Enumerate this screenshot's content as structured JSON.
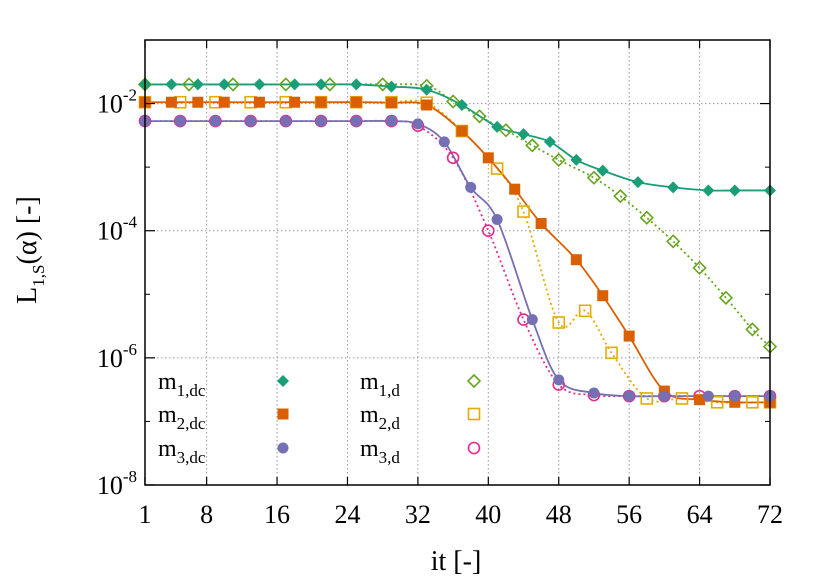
{
  "chart_data": {
    "type": "line",
    "xlabel": "it [-]",
    "ylabel": {
      "base": "L",
      "sub": "1,S",
      "rest": "(α) [-]"
    },
    "x_ticks": [
      1,
      8,
      16,
      24,
      32,
      40,
      48,
      56,
      64,
      72
    ],
    "x_tick_labels": [
      "1",
      "8",
      "16",
      "24",
      "32",
      "40",
      "48",
      "56",
      "64",
      "72"
    ],
    "xlim": [
      1,
      72
    ],
    "y_scale": "log",
    "ylim": [
      1e-08,
      0.1
    ],
    "y_ticks": [
      {
        "value": 0.01,
        "base": "10",
        "exp": "-2"
      },
      {
        "value": 0.0001,
        "base": "10",
        "exp": "-4"
      },
      {
        "value": 1e-06,
        "base": "10",
        "exp": "-6"
      },
      {
        "value": 1e-08,
        "base": "10",
        "exp": "-8"
      }
    ],
    "grid": true,
    "legend_position": "bottom-left",
    "series": [
      {
        "id": "m1dc",
        "name": "m",
        "sub": "1,dc",
        "color": "#1a9e77",
        "marker": "diamond-filled",
        "line": "solid",
        "points": [
          [
            1,
            0.02
          ],
          [
            4,
            0.02
          ],
          [
            7,
            0.02
          ],
          [
            10,
            0.02
          ],
          [
            14,
            0.02
          ],
          [
            18,
            0.02
          ],
          [
            21,
            0.02
          ],
          [
            25,
            0.02
          ],
          [
            29,
            0.0185
          ],
          [
            33,
            0.0165
          ],
          [
            37,
            0.0095
          ],
          [
            41,
            0.0043
          ],
          [
            44,
            0.0033
          ],
          [
            47,
            0.0025
          ],
          [
            50,
            0.0013
          ],
          [
            53,
            0.00088
          ],
          [
            57,
            0.00058
          ],
          [
            61,
            0.00048
          ],
          [
            65,
            0.00043
          ],
          [
            68,
            0.00043
          ],
          [
            72,
            0.00043
          ]
        ]
      },
      {
        "id": "m2dc",
        "name": "m",
        "sub": "2,dc",
        "color": "#d95f02",
        "marker": "square-filled",
        "line": "solid",
        "points": [
          [
            1,
            0.0105
          ],
          [
            4,
            0.0105
          ],
          [
            7,
            0.0105
          ],
          [
            10,
            0.0105
          ],
          [
            14,
            0.0105
          ],
          [
            18,
            0.0105
          ],
          [
            21,
            0.0105
          ],
          [
            25,
            0.0105
          ],
          [
            29,
            0.0103
          ],
          [
            33,
            0.0095
          ],
          [
            37,
            0.0037
          ],
          [
            40,
            0.0014
          ],
          [
            43,
            0.00045
          ],
          [
            46,
            0.00013
          ],
          [
            50,
            3.5e-05
          ],
          [
            53,
            9.5e-06
          ],
          [
            56,
            2.2e-06
          ],
          [
            60,
            3e-07
          ],
          [
            64,
            2.2e-07
          ],
          [
            68,
            2e-07
          ],
          [
            72,
            2e-07
          ]
        ]
      },
      {
        "id": "m3dc",
        "name": "m",
        "sub": "3,dc",
        "color": "#7570b3",
        "marker": "circle-filled",
        "line": "solid",
        "points": [
          [
            1,
            0.0053
          ],
          [
            5,
            0.0053
          ],
          [
            9,
            0.0053
          ],
          [
            13,
            0.0053
          ],
          [
            17,
            0.0053
          ],
          [
            21,
            0.0053
          ],
          [
            25,
            0.0053
          ],
          [
            29,
            0.0053
          ],
          [
            32,
            0.0048
          ],
          [
            35,
            0.0025
          ],
          [
            38,
            0.00048
          ],
          [
            41,
            0.00015
          ],
          [
            45,
            4e-06
          ],
          [
            48,
            4.5e-07
          ],
          [
            52,
            2.8e-07
          ],
          [
            56,
            2.5e-07
          ],
          [
            60,
            2.5e-07
          ],
          [
            65,
            2.5e-07
          ],
          [
            68,
            2.5e-07
          ],
          [
            72,
            2.5e-07
          ]
        ]
      },
      {
        "id": "m1d",
        "name": "m",
        "sub": "1,d",
        "color": "#66a61e",
        "marker": "diamond-open",
        "line": "dotted",
        "points": [
          [
            1,
            0.02
          ],
          [
            6,
            0.02
          ],
          [
            11,
            0.02
          ],
          [
            17,
            0.02
          ],
          [
            22,
            0.02
          ],
          [
            28,
            0.02
          ],
          [
            33,
            0.019
          ],
          [
            36,
            0.0108
          ],
          [
            39,
            0.0063
          ],
          [
            42,
            0.0038
          ],
          [
            45,
            0.0022
          ],
          [
            48,
            0.0013
          ],
          [
            52,
            0.00068
          ],
          [
            55,
            0.00035
          ],
          [
            58,
            0.00016
          ],
          [
            61,
            6.8e-05
          ],
          [
            64,
            2.6e-05
          ],
          [
            67,
            8.8e-06
          ],
          [
            70,
            2.8e-06
          ],
          [
            72,
            1.5e-06
          ]
        ]
      },
      {
        "id": "m2d",
        "name": "m",
        "sub": "2,d",
        "color": "#e6ab02",
        "marker": "square-open",
        "line": "dotted",
        "points": [
          [
            1,
            0.0105
          ],
          [
            5,
            0.0105
          ],
          [
            9,
            0.0105
          ],
          [
            13,
            0.0105
          ],
          [
            17,
            0.0105
          ],
          [
            21,
            0.0105
          ],
          [
            25,
            0.0105
          ],
          [
            29,
            0.0105
          ],
          [
            33,
            0.0103
          ],
          [
            37,
            0.0037
          ],
          [
            41,
            0.00095
          ],
          [
            44,
            0.0002
          ],
          [
            48,
            3.6e-06
          ],
          [
            51,
            5.5e-06
          ],
          [
            54,
            1.2e-06
          ],
          [
            58,
            2.3e-07
          ],
          [
            62,
            2.3e-07
          ],
          [
            66,
            2e-07
          ],
          [
            70,
            2e-07
          ],
          [
            72,
            2e-07
          ]
        ]
      },
      {
        "id": "m3d",
        "name": "m",
        "sub": "3,d",
        "color": "#e7298a",
        "marker": "circle-open",
        "line": "dotted",
        "points": [
          [
            1,
            0.0053
          ],
          [
            5,
            0.0053
          ],
          [
            9,
            0.0053
          ],
          [
            13,
            0.0053
          ],
          [
            17,
            0.0053
          ],
          [
            21,
            0.0053
          ],
          [
            25,
            0.0053
          ],
          [
            29,
            0.0053
          ],
          [
            32,
            0.0045
          ],
          [
            36,
            0.0014
          ],
          [
            40,
            0.0001
          ],
          [
            44,
            4e-06
          ],
          [
            48,
            3.8e-07
          ],
          [
            52,
            2.6e-07
          ],
          [
            56,
            2.5e-07
          ],
          [
            60,
            2.5e-07
          ],
          [
            64,
            2.5e-07
          ],
          [
            68,
            2.5e-07
          ],
          [
            72,
            2.5e-07
          ]
        ]
      }
    ]
  }
}
